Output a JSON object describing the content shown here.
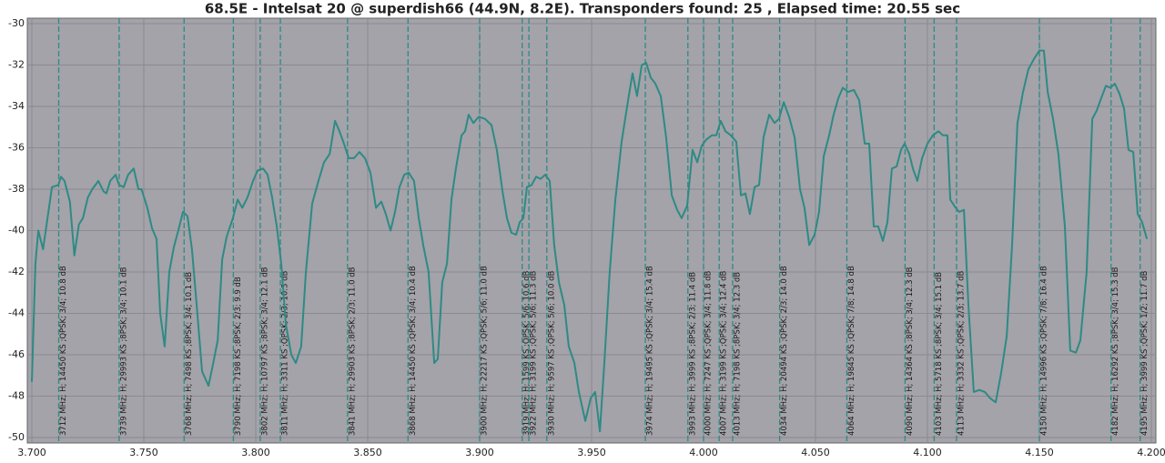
{
  "chart_data": {
    "type": "line",
    "title": "68.5E - Intelsat 20 @ superdish66 (44.9N, 8.2E). Transponders found: 25 , Elapsed time: 20.55 sec",
    "x": [
      3.7,
      3.7016,
      3.7029,
      3.705,
      3.707,
      3.709,
      3.7118,
      3.713,
      3.7146,
      3.717,
      3.719,
      3.721,
      3.7228,
      3.725,
      3.727,
      3.7297,
      3.732,
      3.7333,
      3.735,
      3.7374,
      3.739,
      3.741,
      3.743,
      3.7455,
      3.7476,
      3.749,
      3.7516,
      3.7537,
      3.7557,
      3.7573,
      3.7593,
      3.7614,
      3.7634,
      3.7654,
      3.7675,
      3.7695,
      3.7715,
      3.7736,
      3.776,
      3.7789,
      3.781,
      3.783,
      3.785,
      3.787,
      3.7898,
      3.7919,
      3.794,
      3.7963,
      3.7988,
      3.8008,
      3.8033,
      3.8053,
      3.8073,
      3.8094,
      3.8114,
      3.8134,
      3.8159,
      3.8179,
      3.8203,
      3.8224,
      3.8252,
      3.828,
      3.8305,
      3.833,
      3.8354,
      3.8374,
      3.8394,
      3.8415,
      3.8439,
      3.8463,
      3.8488,
      3.8512,
      3.8537,
      3.8561,
      3.8581,
      3.8602,
      3.8622,
      3.8642,
      3.8663,
      3.8683,
      3.8707,
      3.8728,
      3.8748,
      3.8772,
      3.8797,
      3.8813,
      3.8833,
      3.8854,
      3.8874,
      3.8894,
      3.8919,
      3.8935,
      3.8951,
      3.8972,
      3.8996,
      3.9024,
      3.9053,
      3.9077,
      3.9102,
      3.9122,
      3.9142,
      3.9163,
      3.9179,
      3.9195,
      3.9211,
      3.9232,
      3.9252,
      3.9272,
      3.9293,
      3.9313,
      3.9333,
      3.9354,
      3.9378,
      3.9398,
      3.9423,
      3.9443,
      3.9472,
      3.9496,
      3.9516,
      3.9537,
      3.9557,
      3.9581,
      3.9606,
      3.9634,
      3.9663,
      3.9683,
      3.9703,
      3.9724,
      3.9744,
      3.9764,
      3.9785,
      3.9809,
      3.9833,
      3.9858,
      3.9882,
      3.9902,
      3.9927,
      3.9951,
      3.9972,
      3.9992,
      4.0012,
      4.0037,
      4.0057,
      4.0077,
      4.0098,
      4.0122,
      4.0146,
      4.0167,
      4.0187,
      4.0207,
      4.0228,
      4.0248,
      4.0268,
      4.0293,
      4.0317,
      4.0337,
      4.0358,
      4.0382,
      4.0407,
      4.0431,
      4.0451,
      4.0472,
      4.0496,
      4.0516,
      4.0537,
      4.0561,
      4.0581,
      4.0602,
      4.0622,
      4.0646,
      4.0671,
      4.0695,
      4.072,
      4.074,
      4.076,
      4.078,
      4.0801,
      4.0821,
      4.0841,
      4.0862,
      4.0882,
      4.0898,
      4.0919,
      4.0935,
      4.0955,
      4.0976,
      4.1,
      4.1024,
      4.1049,
      4.1069,
      4.1089,
      4.1102,
      4.1126,
      4.1142,
      4.1163,
      4.1183,
      4.1207,
      4.1232,
      4.1256,
      4.128,
      4.1305,
      4.1329,
      4.1354,
      4.1378,
      4.1402,
      4.1427,
      4.1451,
      4.1476,
      4.15,
      4.152,
      4.1537,
      4.1561,
      4.1585,
      4.1614,
      4.1638,
      4.1663,
      4.1683,
      4.1711,
      4.1736,
      4.1756,
      4.1776,
      4.1797,
      4.1817,
      4.1837,
      4.1858,
      4.1878,
      4.1898,
      4.1919,
      4.1939,
      4.1959,
      4.198
    ],
    "series": [
      {
        "color": "#2e8a85",
        "values": [
          -47.3,
          -41.6,
          -40.0,
          -40.9,
          -39.4,
          -37.9,
          -37.8,
          -37.4,
          -37.6,
          -38.6,
          -41.2,
          -39.7,
          -39.4,
          -38.4,
          -38.0,
          -37.6,
          -38.1,
          -38.2,
          -37.6,
          -37.3,
          -37.8,
          -37.9,
          -37.3,
          -37.0,
          -38.0,
          -38.0,
          -38.9,
          -39.9,
          -40.4,
          -44.0,
          -45.6,
          -42.0,
          -40.8,
          -40.0,
          -39.1,
          -39.3,
          -40.9,
          -43.6,
          -46.8,
          -47.5,
          -46.4,
          -45.3,
          -41.4,
          -40.3,
          -39.4,
          -38.5,
          -38.9,
          -38.4,
          -37.6,
          -37.1,
          -37.0,
          -37.3,
          -38.4,
          -39.8,
          -41.6,
          -44.5,
          -46.0,
          -46.4,
          -45.6,
          -42.0,
          -38.7,
          -37.6,
          -36.7,
          -36.3,
          -34.7,
          -35.2,
          -35.8,
          -36.5,
          -36.5,
          -36.2,
          -36.5,
          -37.2,
          -38.9,
          -38.6,
          -39.2,
          -40.0,
          -39.1,
          -37.9,
          -37.3,
          -37.2,
          -37.6,
          -39.4,
          -40.7,
          -42.0,
          -46.4,
          -46.2,
          -42.5,
          -41.6,
          -38.5,
          -37.0,
          -35.4,
          -35.2,
          -34.4,
          -34.8,
          -34.5,
          -34.6,
          -34.9,
          -36.1,
          -38.1,
          -39.4,
          -40.1,
          -40.2,
          -39.6,
          -39.4,
          -37.9,
          -37.8,
          -37.4,
          -37.5,
          -37.3,
          -37.6,
          -40.7,
          -42.5,
          -43.6,
          -45.6,
          -46.4,
          -47.8,
          -49.2,
          -48.1,
          -47.8,
          -49.7,
          -46.4,
          -42.0,
          -38.5,
          -35.7,
          -33.7,
          -32.4,
          -33.5,
          -32.0,
          -31.9,
          -32.6,
          -32.9,
          -33.5,
          -35.5,
          -38.3,
          -39.0,
          -39.4,
          -38.8,
          -36.1,
          -36.7,
          -35.9,
          -35.6,
          -35.4,
          -35.4,
          -34.7,
          -35.2,
          -35.4,
          -35.7,
          -38.3,
          -38.2,
          -39.2,
          -37.9,
          -37.8,
          -35.5,
          -34.4,
          -34.8,
          -34.6,
          -33.8,
          -34.5,
          -35.5,
          -38.0,
          -38.9,
          -40.7,
          -40.2,
          -39.1,
          -36.4,
          -35.4,
          -34.4,
          -33.6,
          -33.1,
          -33.3,
          -33.2,
          -33.7,
          -35.8,
          -35.8,
          -39.8,
          -39.8,
          -40.5,
          -39.6,
          -37.0,
          -36.9,
          -36.1,
          -35.8,
          -36.3,
          -37.0,
          -37.6,
          -36.5,
          -35.8,
          -35.4,
          -35.2,
          -35.4,
          -35.4,
          -38.5,
          -38.9,
          -39.1,
          -39.0,
          -43.6,
          -47.8,
          -47.7,
          -47.8,
          -48.1,
          -48.3,
          -46.9,
          -45.1,
          -40.7,
          -34.8,
          -33.3,
          -32.2,
          -31.7,
          -31.3,
          -31.3,
          -33.3,
          -34.6,
          -36.3,
          -39.8,
          -45.8,
          -45.9,
          -45.3,
          -42.0,
          -34.6,
          -34.2,
          -33.6,
          -33.0,
          -33.1,
          -32.9,
          -33.4,
          -34.1,
          -36.1,
          -36.2,
          -39.2,
          -39.6,
          -40.4
        ]
      }
    ],
    "annotations": [
      {
        "x": 3.712,
        "label": "3712 MHz; H; 14450 KS ;QPSK; 3/4; 10.8 dB"
      },
      {
        "x": 3.739,
        "label": "3739 MHz; H; 29993 KS ;8PSK; 3/4; 10.1 dB"
      },
      {
        "x": 3.768,
        "label": "3768 MHz; H; 7498 KS ;8PSK; 3/4; 10.1 dB"
      },
      {
        "x": 3.79,
        "label": "3790 MHz; H; 7198 KS ;8PSK; 2/3; 9.9 dB"
      },
      {
        "x": 3.802,
        "label": "3802 MHz; H; 10797 KS ;8PSK; 3/4; 12.1 dB"
      },
      {
        "x": 3.811,
        "label": "3811 MHz; H; 3311 KS ;QPSK; 2/3; 10.3 dB"
      },
      {
        "x": 3.841,
        "label": "3841 MHz; H; 29903 KS ;8PSK; 2/3; 11.0 dB"
      },
      {
        "x": 3.868,
        "label": "3868 MHz; H; 14450 KS ;QPSK; 3/4; 10.4 dB"
      },
      {
        "x": 3.9,
        "label": "3900 MHz; H; 22217 KS ;QPSK; 5/6; 11.0 dB"
      },
      {
        "x": 3.919,
        "label": "3919 MHz; H; 1599 KS ;QPSK; 5/6; 10.6 dB"
      },
      {
        "x": 3.922,
        "label": "3922 MHz; H; 3199 KS ;QPSK; 5/6; 11.3 dB"
      },
      {
        "x": 3.93,
        "label": "3930 MHz; H; 9597 KS ;QPSK; 5/6; 10.0 dB"
      },
      {
        "x": 3.974,
        "label": "3974 MHz; H; 19495 KS ;QPSK; 3/4; 15.4 dB"
      },
      {
        "x": 3.993,
        "label": "3993 MHz; H; 3999 KS ;8PSK; 2/3; 11.4 dB"
      },
      {
        "x": 4.0,
        "label": "4000 MHz; H; 7247 KS ;QPSK; 3/4; 11.8 dB"
      },
      {
        "x": 4.007,
        "label": "4007 MHz; H; 3199 KS ;QPSK; 3/4; 12.4 dB"
      },
      {
        "x": 4.013,
        "label": "4013 MHz; H; 7198 KS ;8PSK; 3/4; 12.3 dB"
      },
      {
        "x": 4.034,
        "label": "4034 MHz; H; 20494 KS ;QPSK; 2/3; 14.0 dB"
      },
      {
        "x": 4.064,
        "label": "4064 MHz; H; 19845 KS ;QPSK; 7/8; 14.8 dB"
      },
      {
        "x": 4.09,
        "label": "4090 MHz; H; 14364 KS ;8PSK; 3/4; 12.3 dB"
      },
      {
        "x": 4.103,
        "label": "4103 MHz; H; 5718 KS ;8PSK; 3/4; 15.1 dB"
      },
      {
        "x": 4.113,
        "label": "4113 MHz; H; 3332 KS ;QPSK; 2/3; 13.7 dB"
      },
      {
        "x": 4.15,
        "label": "4150 MHz; H; 14996 KS ;QPSK; 7/8; 16.4 dB"
      },
      {
        "x": 4.182,
        "label": "4182 MHz; H; 16292 KS ;8PSK; 3/4; 15.3 dB"
      },
      {
        "x": 4.195,
        "label": "4195 MHz; H; 3999 KS ;QPSK; 1/2; 11.7 dB"
      }
    ],
    "annotation_color": "#2e8a85",
    "background": "#a3a3a9",
    "xlim": [
      3.7,
      4.2
    ],
    "xticks": [
      {
        "value": 3.7,
        "label": "3.700"
      },
      {
        "value": 3.75,
        "label": "3.750"
      },
      {
        "value": 3.8,
        "label": "3.800"
      },
      {
        "value": 3.85,
        "label": "3.850"
      },
      {
        "value": 3.9,
        "label": "3.900"
      },
      {
        "value": 3.95,
        "label": "3.950"
      },
      {
        "value": 4.0,
        "label": "4.000"
      },
      {
        "value": 4.05,
        "label": "4.050"
      },
      {
        "value": 4.1,
        "label": "4.100"
      },
      {
        "value": 4.15,
        "label": "4.150"
      },
      {
        "value": 4.2,
        "label": "4.200"
      }
    ],
    "ylim": [
      -50,
      -30
    ],
    "yticks": [
      -30,
      -32,
      -34,
      -36,
      -38,
      -40,
      -42,
      -44,
      -46,
      -48,
      -50
    ],
    "grid": true
  }
}
